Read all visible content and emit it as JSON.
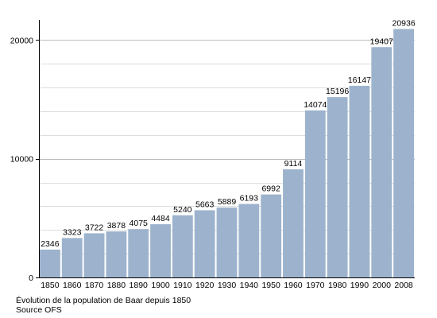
{
  "chart_data": {
    "type": "bar",
    "categories": [
      "1850",
      "1860",
      "1870",
      "1880",
      "1890",
      "1900",
      "1910",
      "1920",
      "1930",
      "1940",
      "1950",
      "1960",
      "1970",
      "1980",
      "1990",
      "2000",
      "2008"
    ],
    "values": [
      2346,
      3323,
      3722,
      3878,
      4075,
      4484,
      5240,
      5663,
      5889,
      6193,
      6992,
      9114,
      14074,
      15196,
      16147,
      19407,
      20936
    ],
    "data_labels": [
      "2346",
      "3323",
      "3722",
      "3878",
      "4075",
      "4484",
      "5240",
      "5663",
      "5889",
      "6193",
      "6992",
      "9114",
      "14074",
      "15196",
      "16147",
      "19407",
      "20936"
    ],
    "y_ticks": [
      {
        "value": 0,
        "label": "0"
      },
      {
        "value": 10000,
        "label": "10000"
      },
      {
        "value": 20000,
        "label": "20000"
      }
    ],
    "ylim": [
      0,
      21500
    ],
    "grid": true,
    "grid_step": 2000,
    "xlabel": "",
    "ylabel": "",
    "colors": {
      "bar": "#9db3cd",
      "grid": "#dddddd",
      "grid_major": "#bbbbbb",
      "axis": "#000000"
    }
  },
  "caption": {
    "title": "Évolution de la population de Baar depuis 1850",
    "source": "Source OFS"
  }
}
